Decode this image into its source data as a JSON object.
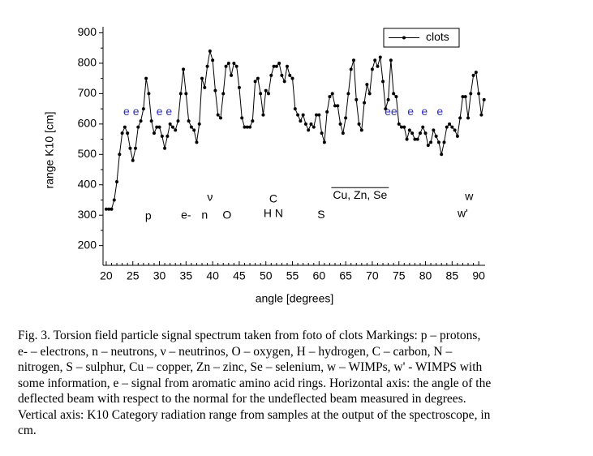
{
  "chart_data": {
    "type": "line",
    "x_label": "angle [degrees]",
    "y_label": "range K10 [cm]",
    "xlim": [
      19.4,
      91.2
    ],
    "xticks": [
      20,
      25,
      30,
      35,
      40,
      45,
      50,
      55,
      60,
      65,
      70,
      75,
      80,
      85,
      90
    ],
    "ylim": [
      135,
      920
    ],
    "yticks": [
      200,
      300,
      400,
      500,
      600,
      700,
      800,
      900
    ],
    "legend": "upper right",
    "x": [
      20,
      20.5,
      21,
      21.5,
      22,
      22.5,
      23,
      23.5,
      24,
      24.5,
      25,
      25.5,
      26,
      26.5,
      27,
      27.5,
      28,
      28.5,
      29,
      29.5,
      30,
      30.5,
      31,
      31.5,
      32,
      32.5,
      33,
      33.5,
      34,
      34.5,
      35,
      35.5,
      36,
      36.5,
      37,
      37.5,
      38,
      38.5,
      39,
      39.5,
      40,
      40.5,
      41,
      41.5,
      42,
      42.5,
      43,
      43.5,
      44,
      44.5,
      45,
      45.5,
      46,
      46.5,
      47,
      47.5,
      48,
      48.5,
      49,
      49.5,
      50,
      50.5,
      51,
      51.5,
      52,
      52.5,
      53,
      53.5,
      54,
      54.5,
      55,
      55.5,
      56,
      56.5,
      57,
      57.5,
      58,
      58.5,
      59,
      59.5,
      60,
      60.5,
      61,
      61.5,
      62,
      62.5,
      63,
      63.5,
      64,
      64.5,
      65,
      65.5,
      66,
      66.5,
      67,
      67.5,
      68,
      68.5,
      69,
      69.5,
      70,
      70.5,
      71,
      71.5,
      72,
      72.5,
      73,
      73.5,
      74,
      74.5,
      75,
      75.5,
      76,
      76.5,
      77,
      77.5,
      78,
      78.5,
      79,
      79.5,
      80,
      80.5,
      81,
      81.5,
      82,
      82.5,
      83,
      83.5,
      84,
      84.5,
      85,
      85.5,
      86,
      86.5,
      87,
      87.5,
      88,
      88.5,
      89,
      89.5,
      90,
      90.5,
      91
    ],
    "series": [
      {
        "name": "clots",
        "color": "#000000",
        "values": [
          320,
          320,
          320,
          350,
          410,
          500,
          570,
          590,
          570,
          520,
          480,
          520,
          590,
          610,
          650,
          750,
          700,
          610,
          570,
          590,
          590,
          560,
          520,
          560,
          600,
          590,
          580,
          610,
          700,
          780,
          700,
          610,
          590,
          580,
          540,
          600,
          750,
          720,
          790,
          840,
          810,
          710,
          630,
          620,
          700,
          790,
          800,
          760,
          800,
          790,
          720,
          620,
          590,
          590,
          590,
          610,
          740,
          750,
          700,
          630,
          710,
          700,
          760,
          790,
          790,
          800,
          760,
          740,
          790,
          760,
          750,
          650,
          630,
          610,
          630,
          600,
          580,
          600,
          590,
          630,
          630,
          570,
          540,
          640,
          690,
          700,
          660,
          660,
          600,
          570,
          620,
          700,
          780,
          810,
          680,
          600,
          580,
          670,
          730,
          700,
          780,
          810,
          790,
          820,
          740,
          650,
          680,
          810,
          700,
          690,
          600,
          590,
          590,
          550,
          580,
          570,
          550,
          550,
          570,
          590,
          570,
          530,
          540,
          580,
          560,
          540,
          500,
          540,
          590,
          600,
          590,
          580,
          560,
          620,
          690,
          690,
          620,
          700,
          760,
          770,
          700,
          630,
          680
        ]
      }
    ],
    "annotations": [
      {
        "text": "e e",
        "x": 24.7,
        "y": 639,
        "color": "#2a2ad0"
      },
      {
        "text": "e e",
        "x": 30.9,
        "y": 639,
        "color": "#2a2ad0"
      },
      {
        "text": "ee",
        "x": 73.5,
        "y": 639,
        "color": "#2a2ad0"
      },
      {
        "text": "e",
        "x": 77.2,
        "y": 639,
        "color": "#2a2ad0"
      },
      {
        "text": "e",
        "x": 79.8,
        "y": 639,
        "color": "#2a2ad0"
      },
      {
        "text": "e",
        "x": 82.7,
        "y": 639,
        "color": "#2a2ad0"
      },
      {
        "text": "p",
        "x": 27.9,
        "y": 296,
        "color": "#000000"
      },
      {
        "text": "e-",
        "x": 35,
        "y": 298,
        "color": "#000000"
      },
      {
        "text": "n",
        "x": 38.5,
        "y": 298,
        "color": "#000000"
      },
      {
        "text": "O",
        "x": 42.7,
        "y": 298,
        "color": "#000000"
      },
      {
        "text": "ν",
        "x": 39.5,
        "y": 357,
        "color": "#000000"
      },
      {
        "text": "C",
        "x": 51.4,
        "y": 352,
        "color": "#000000"
      },
      {
        "text": "H N",
        "x": 51.4,
        "y": 304,
        "color": "#000000"
      },
      {
        "text": "S",
        "x": 60.4,
        "y": 300,
        "color": "#000000"
      },
      {
        "text": "Cu, Zn, Se",
        "x": 67.7,
        "y": 364,
        "color": "#000000",
        "overline": true
      },
      {
        "text": "w",
        "x": 88.2,
        "y": 360,
        "color": "#000000"
      },
      {
        "text": "w'",
        "x": 87,
        "y": 304,
        "color": "#000000"
      }
    ]
  },
  "caption": [
    "Fig. 3. Torsion field particle signal spectrum taken from foto of clots Markings: p – protons,",
    "e- – electrons, n – neutrons, ν – neutrinos, O – oxygen, H – hydrogen, C – carbon, N –",
    "nitrogen, S – sulphur, Cu – copper, Zn – zinc, Se – selenium, w – WIMPs, w' - WIMPS with",
    "some information, e – signal from aromatic amino acid rings. Horizontal axis: the angle of the",
    "deflected beam with respect to the normal for the undeflected beam measured in degrees.",
    "Vertical axis: K10 Category radiation range from samples at the output of the spectroscope, in",
    "cm."
  ]
}
